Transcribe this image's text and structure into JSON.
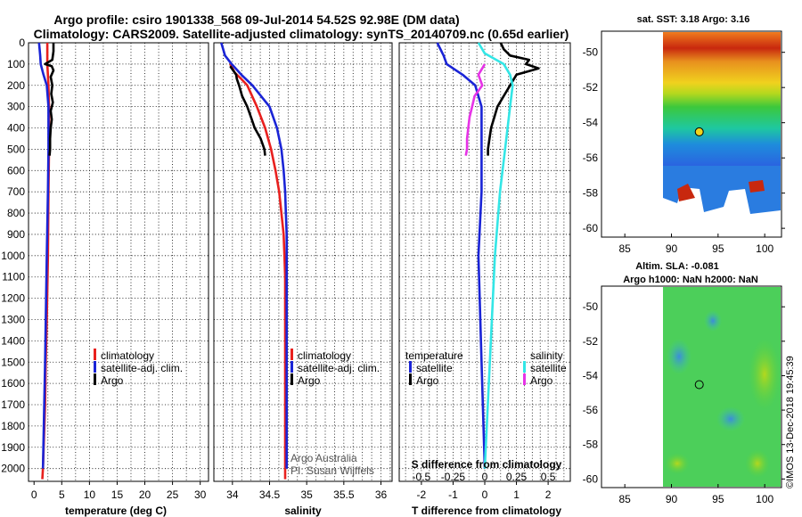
{
  "title": {
    "line1": "Argo profile: csiro 1901338_568 09-Jul-2014 54.52S 92.98E (DM data)",
    "line2": "Climatology: CARS2009. Satellite-adjusted climatology: synTS_20140709.nc (0.65d earlier)"
  },
  "colors": {
    "climatology": "#e8201e",
    "satellite": "#1a24d6",
    "argo": "#000000",
    "cyan": "#33e6e6",
    "magenta": "#e633e6"
  },
  "depth_ticks": [
    "0",
    "100",
    "200",
    "300",
    "400",
    "500",
    "600",
    "700",
    "800",
    "900",
    "1000",
    "1100",
    "1200",
    "1300",
    "1400",
    "1500",
    "1600",
    "1700",
    "1800",
    "1900",
    "2000"
  ],
  "chart_data": [
    {
      "id": "temperature",
      "type": "line",
      "xlabel": "temperature (deg C)",
      "ylabel": "",
      "xlim": [
        -1,
        31.5
      ],
      "ylim": [
        2060,
        0
      ],
      "xticks": [
        0,
        5,
        10,
        15,
        20,
        25,
        30
      ],
      "xtick_labels": [
        "0",
        "5",
        "10",
        "15",
        "20",
        "25",
        "30"
      ],
      "legend": [
        "climatology",
        "satellite-adj. clim.",
        "Argo"
      ],
      "series": [
        {
          "name": "climatology",
          "color": "#e8201e",
          "depth": [
            0,
            60,
            100,
            200,
            300,
            500,
            700,
            1000,
            1300,
            1500,
            1700,
            2000,
            2050
          ],
          "values": [
            2.4,
            2.4,
            2.4,
            2.6,
            2.7,
            2.7,
            2.6,
            2.5,
            2.3,
            2.1,
            2.0,
            1.6,
            1.5
          ]
        },
        {
          "name": "satellite-adj. clim.",
          "color": "#1a24d6",
          "depth": [
            0,
            60,
            100,
            150,
            200,
            300,
            500,
            700,
            1000,
            1500,
            2000
          ],
          "values": [
            0.9,
            1.1,
            1.2,
            1.7,
            2.3,
            2.6,
            2.6,
            2.5,
            2.3,
            2.0,
            1.6
          ]
        },
        {
          "name": "Argo",
          "color": "#000000",
          "depth": [
            0,
            40,
            80,
            100,
            110,
            130,
            160,
            200,
            240,
            280,
            320,
            360,
            400,
            450,
            500,
            530
          ],
          "values": [
            3.5,
            3.5,
            3.3,
            2.0,
            3.2,
            3.5,
            3.0,
            3.3,
            3.1,
            3.4,
            3.0,
            3.2,
            3.0,
            2.9,
            2.9,
            2.8
          ]
        }
      ]
    },
    {
      "id": "salinity",
      "type": "line",
      "xlabel": "salinity",
      "ylabel": "",
      "xlim": [
        33.75,
        36.15
      ],
      "ylim": [
        2060,
        0
      ],
      "xticks": [
        34,
        34.5,
        35,
        35.5,
        36
      ],
      "xtick_labels": [
        "34",
        "34.5",
        "35",
        "35.5",
        "36"
      ],
      "legend": [
        "climatology",
        "satellite-adj. clim.",
        "Argo"
      ],
      "series": [
        {
          "name": "climatology",
          "color": "#e8201e",
          "depth": [
            100,
            140,
            170,
            200,
            300,
            400,
            500,
            600,
            700,
            800,
            900,
            1000,
            1100,
            1500,
            2000,
            2050
          ],
          "values": [
            33.97,
            34.03,
            34.12,
            34.2,
            34.33,
            34.44,
            34.52,
            34.58,
            34.63,
            34.66,
            34.69,
            34.7,
            34.71,
            34.71,
            34.71,
            34.71
          ]
        },
        {
          "name": "satellite-adj. clim.",
          "color": "#1a24d6",
          "depth": [
            0,
            60,
            100,
            150,
            200,
            300,
            400,
            500,
            600,
            700,
            800,
            900,
            1000,
            1100,
            2000
          ],
          "values": [
            33.85,
            33.9,
            33.99,
            34.12,
            34.27,
            34.5,
            34.6,
            34.66,
            34.69,
            34.71,
            34.72,
            34.73,
            34.73,
            34.73,
            34.73
          ]
        },
        {
          "name": "Argo",
          "color": "#000000",
          "depth": [
            110,
            150,
            170,
            200,
            250,
            300,
            350,
            400,
            450,
            500,
            530
          ],
          "values": [
            33.97,
            34.05,
            34.06,
            34.09,
            34.13,
            34.2,
            34.25,
            34.3,
            34.38,
            34.43,
            34.44
          ]
        }
      ],
      "annotations": [
        "Argo Australia",
        "PI: Susan Wijffels"
      ]
    },
    {
      "id": "differences",
      "type": "line",
      "xlabel": "T difference from climatology",
      "x2label": "S difference from climatology",
      "xlim": [
        -2.7,
        2.7
      ],
      "ylim": [
        2060,
        0
      ],
      "xticks": [
        -2,
        -1,
        0,
        1,
        2
      ],
      "xtick_labels": [
        "-2",
        "-1",
        "0",
        "1",
        "2"
      ],
      "x2tick_labels": [
        "-0.5",
        "-0.25",
        "0",
        "0.25",
        "0.5"
      ],
      "legend_temperature_title": "temperature",
      "legend_salinity_title": "salinity",
      "legend_temperature": [
        "satellite",
        "Argo"
      ],
      "legend_salinity": [
        "satellite",
        "Argo"
      ],
      "series": [
        {
          "name": "temperature satellite",
          "color": "#1a24d6",
          "depth": [
            0,
            60,
            100,
            150,
            200,
            300,
            500,
            700,
            1000,
            1500,
            2000
          ],
          "values": [
            -1.5,
            -1.3,
            -1.2,
            -0.7,
            -0.3,
            -0.1,
            -0.1,
            -0.1,
            -0.2,
            -0.1,
            0.0
          ]
        },
        {
          "name": "temperature Argo",
          "color": "#000000",
          "depth": [
            0,
            30,
            60,
            80,
            100,
            120,
            150,
            200,
            250,
            300,
            350,
            400,
            450,
            500,
            530
          ],
          "values": [
            0.5,
            0.6,
            0.8,
            1.4,
            1.3,
            1.7,
            1.0,
            0.8,
            0.6,
            0.4,
            0.3,
            0.2,
            0.15,
            0.1,
            0.1
          ]
        },
        {
          "name": "salinity satellite",
          "color": "#33e6e6",
          "depth": [
            0,
            50,
            100,
            150,
            200,
            300,
            500,
            700,
            1000,
            1500,
            2000
          ],
          "values": [
            -0.05,
            0.0,
            0.15,
            0.2,
            0.22,
            0.2,
            0.16,
            0.12,
            0.08,
            0.04,
            0.0
          ]
        },
        {
          "name": "salinity Argo",
          "color": "#e633e6",
          "depth": [
            100,
            150,
            200,
            250,
            300,
            350,
            400,
            450,
            500,
            530
          ],
          "values": [
            0.0,
            -0.05,
            -0.02,
            -0.08,
            -0.1,
            -0.12,
            -0.13,
            -0.14,
            -0.14,
            -0.15
          ]
        }
      ]
    }
  ],
  "sst_map": {
    "title": "sat. SST: 3.18 Argo: 3.16",
    "lon_ticks": [
      "85",
      "90",
      "95",
      "100"
    ],
    "lat_ticks": [
      "-50",
      "-52",
      "-54",
      "-56",
      "-58",
      "-60"
    ],
    "float_lon": 92.98,
    "float_lat": -54.52
  },
  "sla_map": {
    "title1": "Altim. SLA: -0.081",
    "title2": "Argo h1000: NaN h2000: NaN",
    "lon_ticks": [
      "85",
      "90",
      "95",
      "100"
    ],
    "lat_ticks": [
      "-50",
      "-52",
      "-54",
      "-56",
      "-58",
      "-60"
    ],
    "float_lon": 92.98,
    "float_lat": -54.52
  },
  "credit": "©IMOS 13-Dec-2018 19:45:39"
}
